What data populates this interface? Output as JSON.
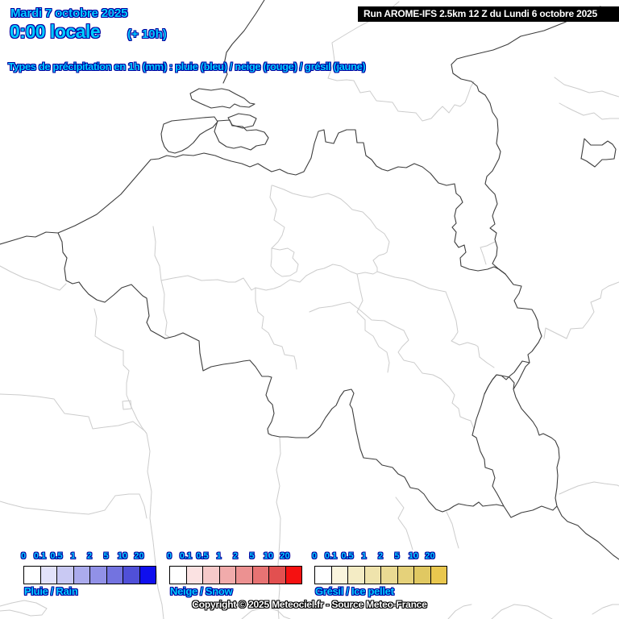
{
  "header": {
    "date_line": "Mardi 7 octobre 2025",
    "time_line": "0:00 locale",
    "time_offset": "(+ 10h)",
    "run_info": "Run AROME-IFS 2.5km 12 Z du Lundi 6 octobre 2025",
    "subtitle": "Types de précipitation en 1h (mm) : pluie (bleu) / neige (rouge) / grésil (jaune)"
  },
  "colors": {
    "accent_cyan": "#00ccff",
    "accent_outline_navy": "#0000a0",
    "run_box_bg": "#000000",
    "run_box_text": "#ffffff",
    "map_border_dark": "#3d3d3d",
    "map_border_light": "#cccccc"
  },
  "legends": [
    {
      "id": "rain",
      "caption": "Pluie / Rain",
      "values": [
        "0",
        "0.1",
        "0.5",
        "1",
        "2",
        "5",
        "10",
        "20"
      ],
      "swatch_colors": [
        "#ffffff",
        "#e2e2fa",
        "#c9c9f3",
        "#ababed",
        "#9191e7",
        "#7373e0",
        "#5050d8",
        "#0f0fee"
      ]
    },
    {
      "id": "snow",
      "caption": "Neige / Snow",
      "values": [
        "0",
        "0.1",
        "0.5",
        "1",
        "2",
        "5",
        "10",
        "20"
      ],
      "swatch_colors": [
        "#ffffff",
        "#fbe2e2",
        "#f6c9c9",
        "#f1abab",
        "#ec9191",
        "#e77373",
        "#e25050",
        "#f51111"
      ]
    },
    {
      "id": "ice",
      "caption": "Grésil / Ice pellet",
      "values": [
        "0",
        "0.1",
        "0.5",
        "1",
        "2",
        "5",
        "10",
        "20"
      ],
      "swatch_colors": [
        "#ffffff",
        "#faf5dd",
        "#f4ecc5",
        "#efe3ac",
        "#eada93",
        "#e5d17a",
        "#e0c862",
        "#e9c74e"
      ]
    }
  ],
  "footer": {
    "copyright": "Copyright © 2025 Meteociel.fr - Source Meteo-France"
  }
}
